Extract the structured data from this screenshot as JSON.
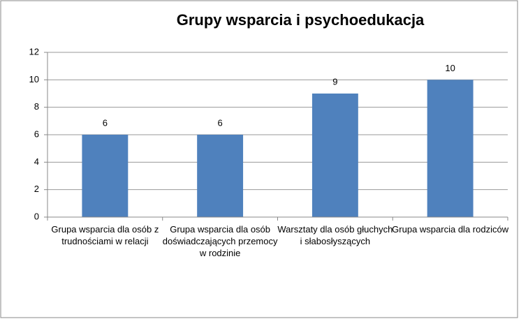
{
  "chart_data": {
    "type": "bar",
    "title": "Grupy wsparcia i psychoedukacja",
    "categories": [
      "Grupa wsparcia dla osób z trudnościami w relacji",
      "Grupa wsparcia dla osób doświadczających przemocy w rodzinie",
      "Warsztaty dla osób głuchych i słabosłyszących",
      "Grupa wsparcia dla rodziców"
    ],
    "values": [
      6,
      6,
      9,
      10
    ],
    "color": "#4f81bd",
    "ylim": [
      0,
      12
    ],
    "yticks": [
      0,
      2,
      4,
      6,
      8,
      10,
      12
    ],
    "grid": true
  }
}
